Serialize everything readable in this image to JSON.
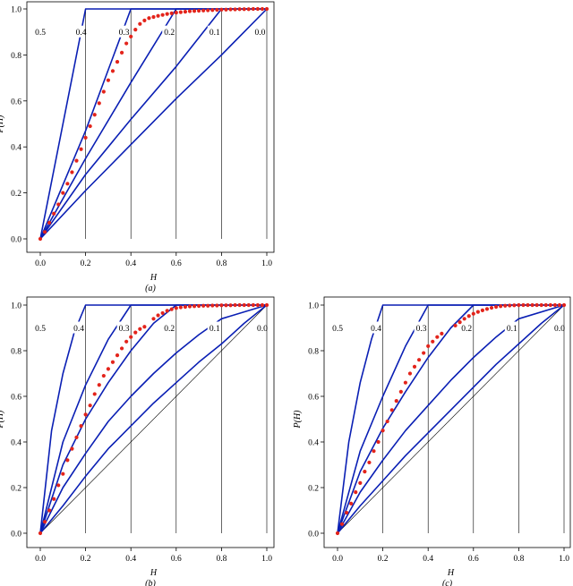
{
  "chart_data": [
    {
      "type": "line",
      "caption": "(a)",
      "xlabel": "H",
      "ylabel": "P(H)",
      "xlim": [
        0,
        1
      ],
      "ylim": [
        0,
        1
      ],
      "x_ticks": [
        "0.0",
        "0.2",
        "0.4",
        "0.6",
        "0.8",
        "1.0"
      ],
      "y_ticks": [
        "0.0",
        "0.2",
        "0.4",
        "0.6",
        "0.8",
        "1.0"
      ],
      "vertical_reference_lines": [
        0.2,
        0.4,
        0.6,
        0.8
      ],
      "diagonal_reference": false,
      "series": [
        {
          "name": "0.5",
          "label_at": [
            0.0,
            0.9
          ],
          "x": [
            0,
            0,
            0
          ],
          "y": [
            0,
            0.9,
            1
          ]
        },
        {
          "name": "0.4",
          "label_at": [
            0.18,
            0.9
          ],
          "x": [
            0,
            0.1,
            0.2,
            1
          ],
          "y": [
            0,
            0.5,
            1,
            1
          ]
        },
        {
          "name": "0.3",
          "label_at": [
            0.37,
            0.9
          ],
          "x": [
            0,
            0.2,
            0.4,
            1
          ],
          "y": [
            0,
            0.47,
            1,
            1
          ]
        },
        {
          "name": "0.2",
          "label_at": [
            0.57,
            0.9
          ],
          "x": [
            0,
            0.2,
            0.4,
            0.6,
            1
          ],
          "y": [
            0,
            0.35,
            0.68,
            1,
            1
          ]
        },
        {
          "name": "0.1",
          "label_at": [
            0.77,
            0.9
          ],
          "x": [
            0,
            0.2,
            0.4,
            0.6,
            0.8,
            1
          ],
          "y": [
            0,
            0.28,
            0.52,
            0.75,
            1,
            1
          ]
        },
        {
          "name": "0.0",
          "label_at": [
            0.97,
            0.9
          ],
          "x": [
            0,
            0.2,
            0.4,
            0.6,
            0.8,
            1
          ],
          "y": [
            0,
            0.21,
            0.41,
            0.61,
            0.8,
            1
          ]
        }
      ],
      "points": {
        "x": [
          0,
          0.02,
          0.04,
          0.06,
          0.08,
          0.1,
          0.12,
          0.14,
          0.16,
          0.18,
          0.2,
          0.22,
          0.24,
          0.26,
          0.28,
          0.3,
          0.32,
          0.34,
          0.36,
          0.38,
          0.4,
          0.42,
          0.44,
          0.46,
          0.48,
          0.5,
          0.52,
          0.54,
          0.56,
          0.58,
          0.6,
          0.62,
          0.64,
          0.66,
          0.68,
          0.7,
          0.72,
          0.74,
          0.76,
          0.78,
          0.8,
          0.82,
          0.84,
          0.86,
          0.88,
          0.9,
          0.92,
          0.94,
          0.96,
          0.98,
          1.0
        ],
        "y": [
          0,
          0.03,
          0.07,
          0.11,
          0.15,
          0.2,
          0.24,
          0.29,
          0.34,
          0.39,
          0.44,
          0.49,
          0.54,
          0.59,
          0.64,
          0.69,
          0.73,
          0.77,
          0.81,
          0.85,
          0.88,
          0.91,
          0.935,
          0.95,
          0.96,
          0.965,
          0.97,
          0.974,
          0.978,
          0.981,
          0.984,
          0.986,
          0.988,
          0.99,
          0.991,
          0.992,
          0.993,
          0.994,
          0.995,
          0.996,
          0.997,
          0.997,
          0.998,
          0.998,
          0.999,
          0.999,
          0.999,
          1,
          1,
          1,
          1
        ]
      }
    },
    {
      "type": "line",
      "caption": "(b)",
      "xlabel": "H",
      "ylabel": "P(H)",
      "xlim": [
        0,
        1
      ],
      "ylim": [
        0,
        1
      ],
      "x_ticks": [
        "0.0",
        "0.2",
        "0.4",
        "0.6",
        "0.8",
        "1.0"
      ],
      "y_ticks": [
        "0.0",
        "0.2",
        "0.4",
        "0.6",
        "0.8",
        "1.0"
      ],
      "vertical_reference_lines": [
        0.2,
        0.4,
        0.6,
        0.8
      ],
      "diagonal_reference": true,
      "series": [
        {
          "name": "0.5",
          "label_at": [
            0.0,
            0.9
          ],
          "x": [
            0,
            0,
            0
          ],
          "y": [
            0,
            0.9,
            1
          ]
        },
        {
          "name": "0.4",
          "label_at": [
            0.17,
            0.9
          ],
          "x": [
            0,
            0.05,
            0.1,
            0.15,
            0.2,
            1
          ],
          "y": [
            0,
            0.45,
            0.7,
            0.88,
            1,
            1
          ]
        },
        {
          "name": "0.3",
          "label_at": [
            0.37,
            0.9
          ],
          "x": [
            0,
            0.1,
            0.2,
            0.3,
            0.4,
            1
          ],
          "y": [
            0,
            0.4,
            0.65,
            0.85,
            1,
            1
          ]
        },
        {
          "name": "0.2",
          "label_at": [
            0.57,
            0.9
          ],
          "x": [
            0,
            0.1,
            0.2,
            0.3,
            0.4,
            0.5,
            0.6,
            1
          ],
          "y": [
            0,
            0.3,
            0.5,
            0.66,
            0.8,
            0.92,
            1,
            1
          ]
        },
        {
          "name": "0.1",
          "label_at": [
            0.77,
            0.9
          ],
          "x": [
            0,
            0.1,
            0.2,
            0.3,
            0.4,
            0.5,
            0.6,
            0.7,
            0.8,
            1
          ],
          "y": [
            0,
            0.2,
            0.35,
            0.49,
            0.6,
            0.7,
            0.79,
            0.87,
            0.94,
            1
          ]
        },
        {
          "name": "0.0",
          "label_at": [
            0.98,
            0.9
          ],
          "x": [
            0,
            0.1,
            0.2,
            0.3,
            0.4,
            0.5,
            0.6,
            0.7,
            0.8,
            0.9,
            1
          ],
          "y": [
            0,
            0.12,
            0.25,
            0.37,
            0.47,
            0.57,
            0.66,
            0.75,
            0.83,
            0.92,
            1
          ]
        }
      ],
      "points": {
        "x": [
          0,
          0.02,
          0.04,
          0.06,
          0.08,
          0.1,
          0.12,
          0.14,
          0.16,
          0.18,
          0.2,
          0.22,
          0.24,
          0.26,
          0.28,
          0.3,
          0.32,
          0.34,
          0.36,
          0.38,
          0.4,
          0.42,
          0.44,
          0.46,
          0.5,
          0.52,
          0.54,
          0.56,
          0.58,
          0.6,
          0.62,
          0.64,
          0.66,
          0.68,
          0.7,
          0.72,
          0.74,
          0.76,
          0.78,
          0.8,
          0.82,
          0.84,
          0.86,
          0.88,
          0.9,
          0.92,
          0.94,
          0.96,
          0.98,
          1.0
        ],
        "y": [
          0,
          0.05,
          0.1,
          0.15,
          0.21,
          0.26,
          0.32,
          0.37,
          0.42,
          0.47,
          0.52,
          0.56,
          0.61,
          0.65,
          0.69,
          0.72,
          0.75,
          0.78,
          0.81,
          0.84,
          0.86,
          0.88,
          0.895,
          0.905,
          0.94,
          0.955,
          0.965,
          0.975,
          0.982,
          0.987,
          0.99,
          0.992,
          0.994,
          0.995,
          0.996,
          0.997,
          0.997,
          0.998,
          0.998,
          0.999,
          0.999,
          0.999,
          1,
          1,
          1,
          1,
          1,
          1,
          1,
          1
        ]
      }
    },
    {
      "type": "line",
      "caption": "(c)",
      "xlabel": "H",
      "ylabel": "P(H)",
      "xlim": [
        0,
        1
      ],
      "ylim": [
        0,
        1
      ],
      "x_ticks": [
        "0.0",
        "0.2",
        "0.4",
        "0.6",
        "0.8",
        "1.0"
      ],
      "y_ticks": [
        "0.0",
        "0.2",
        "0.4",
        "0.6",
        "0.8",
        "1.0"
      ],
      "vertical_reference_lines": [
        0.2,
        0.4,
        0.6,
        0.8
      ],
      "diagonal_reference": true,
      "series": [
        {
          "name": "0.5",
          "label_at": [
            0.0,
            0.9
          ],
          "x": [
            0,
            0,
            0
          ],
          "y": [
            0,
            0.9,
            1
          ]
        },
        {
          "name": "0.4",
          "label_at": [
            0.17,
            0.9
          ],
          "x": [
            0,
            0.05,
            0.1,
            0.15,
            0.2,
            1
          ],
          "y": [
            0,
            0.4,
            0.66,
            0.85,
            1,
            1
          ]
        },
        {
          "name": "0.3",
          "label_at": [
            0.37,
            0.9
          ],
          "x": [
            0,
            0.1,
            0.2,
            0.3,
            0.4,
            1
          ],
          "y": [
            0,
            0.36,
            0.6,
            0.82,
            1,
            1
          ]
        },
        {
          "name": "0.2",
          "label_at": [
            0.57,
            0.9
          ],
          "x": [
            0,
            0.1,
            0.2,
            0.3,
            0.4,
            0.5,
            0.6,
            1
          ],
          "y": [
            0,
            0.27,
            0.46,
            0.62,
            0.77,
            0.9,
            1,
            1
          ]
        },
        {
          "name": "0.1",
          "label_at": [
            0.77,
            0.9
          ],
          "x": [
            0,
            0.1,
            0.2,
            0.3,
            0.4,
            0.5,
            0.6,
            0.7,
            0.8,
            1
          ],
          "y": [
            0,
            0.18,
            0.32,
            0.45,
            0.56,
            0.67,
            0.77,
            0.86,
            0.94,
            1
          ]
        },
        {
          "name": "0.0",
          "label_at": [
            0.98,
            0.9
          ],
          "x": [
            0,
            0.1,
            0.2,
            0.3,
            0.4,
            0.5,
            0.6,
            0.7,
            0.8,
            0.9,
            1
          ],
          "y": [
            0,
            0.12,
            0.23,
            0.34,
            0.44,
            0.54,
            0.64,
            0.74,
            0.83,
            0.92,
            1
          ]
        }
      ],
      "points": {
        "x": [
          0,
          0.02,
          0.04,
          0.06,
          0.08,
          0.1,
          0.12,
          0.14,
          0.16,
          0.18,
          0.2,
          0.22,
          0.24,
          0.26,
          0.28,
          0.3,
          0.32,
          0.34,
          0.36,
          0.38,
          0.4,
          0.42,
          0.44,
          0.46,
          0.52,
          0.54,
          0.56,
          0.58,
          0.6,
          0.62,
          0.64,
          0.66,
          0.68,
          0.7,
          0.72,
          0.74,
          0.76,
          0.78,
          0.8,
          0.82,
          0.84,
          0.86,
          0.88,
          0.9,
          0.92,
          0.94,
          0.96,
          0.98,
          1.0
        ],
        "y": [
          0,
          0.04,
          0.09,
          0.13,
          0.18,
          0.22,
          0.27,
          0.31,
          0.36,
          0.4,
          0.45,
          0.49,
          0.54,
          0.58,
          0.62,
          0.66,
          0.7,
          0.73,
          0.76,
          0.79,
          0.82,
          0.84,
          0.86,
          0.875,
          0.91,
          0.925,
          0.94,
          0.952,
          0.962,
          0.97,
          0.977,
          0.983,
          0.988,
          0.992,
          0.995,
          0.997,
          0.998,
          0.999,
          1,
          1,
          1,
          1,
          1,
          1,
          1,
          1,
          1,
          1,
          1
        ]
      }
    }
  ]
}
